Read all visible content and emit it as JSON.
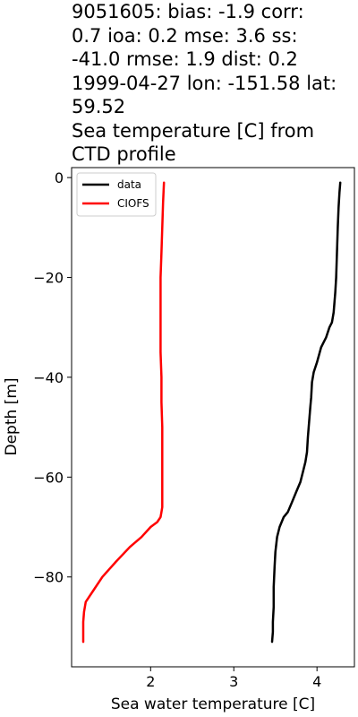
{
  "chart_data": {
    "type": "line",
    "title_lines": [
      "9051605: bias: -1.9  corr:",
      "0.7  ioa: 0.2  mse: 3.6  ss:",
      "-41.0  rmse: 1.9  dist: 0.2",
      "1999-04-27 lon: -151.58 lat:",
      "59.52",
      "Sea temperature [C] from",
      "CTD profile"
    ],
    "xlabel": "Sea water temperature [C]",
    "ylabel": "Depth [m]",
    "xlim": [
      1.05,
      4.45
    ],
    "ylim": [
      -98,
      2
    ],
    "xticks": [
      2,
      3,
      4
    ],
    "yticks": [
      0,
      -20,
      -40,
      -60,
      -80
    ],
    "legend_position": "top-left",
    "series": [
      {
        "name": "data",
        "color": "#000000",
        "x": [
          4.28,
          4.27,
          4.26,
          4.25,
          4.24,
          4.23,
          4.22,
          4.21,
          4.2,
          4.18,
          4.15,
          4.11,
          4.05,
          4.0,
          3.96,
          3.94,
          3.93,
          3.92,
          3.91,
          3.9,
          3.89,
          3.88,
          3.86,
          3.83,
          3.8,
          3.75,
          3.7,
          3.65,
          3.6,
          3.55,
          3.52,
          3.5,
          3.49,
          3.48,
          3.48,
          3.47,
          3.47,
          3.46
        ],
        "y": [
          -1,
          -3,
          -6,
          -10,
          -15,
          -20,
          -23,
          -25,
          -27,
          -29,
          -30,
          -32,
          -34,
          -37,
          -39,
          -41,
          -44,
          -46,
          -48,
          -50,
          -52,
          -55,
          -57,
          -59,
          -61,
          -63,
          -65,
          -67,
          -68,
          -70,
          -72,
          -75,
          -78,
          -82,
          -86,
          -89,
          -91,
          -93
        ]
      },
      {
        "name": "CIOFS",
        "color": "#ff0000",
        "x": [
          2.16,
          2.15,
          2.14,
          2.13,
          2.12,
          2.12,
          2.12,
          2.12,
          2.13,
          2.13,
          2.14,
          2.14,
          2.14,
          2.14,
          2.14,
          2.14,
          2.14,
          2.13,
          2.12,
          2.08,
          2.0,
          1.89,
          1.75,
          1.58,
          1.42,
          1.3,
          1.22,
          1.2,
          1.19,
          1.19,
          1.19
        ],
        "y": [
          -1,
          -5,
          -10,
          -15,
          -20,
          -25,
          -30,
          -35,
          -40,
          -45,
          -50,
          -55,
          -60,
          -62,
          -64,
          -65,
          -66,
          -67,
          -68,
          -69,
          -70,
          -72,
          -74,
          -77,
          -80,
          -83,
          -85,
          -87,
          -89,
          -91,
          -93
        ]
      }
    ]
  }
}
